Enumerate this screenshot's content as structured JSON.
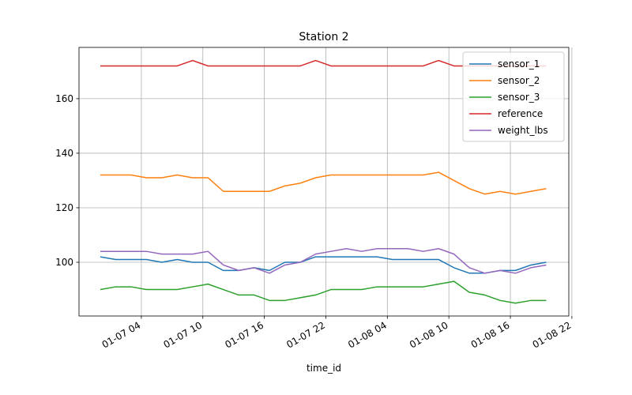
{
  "chart_data": {
    "type": "line",
    "title": "Station 2",
    "x_label": "time_id",
    "x": [
      0,
      1.5,
      3,
      4.5,
      6,
      7.5,
      9,
      10.5,
      12,
      13.5,
      15,
      16.5,
      18,
      19.5,
      21,
      22.5,
      24,
      25.5,
      27,
      28.5,
      30,
      31.5,
      33,
      34.5,
      36,
      37.5,
      39,
      40.5,
      42,
      43.5
    ],
    "series": [
      {
        "name": "sensor_1",
        "color": "#1f77b4",
        "values": [
          102,
          101,
          101,
          101,
          100,
          101,
          100,
          100,
          97,
          97,
          98,
          97,
          100,
          100,
          102,
          102,
          102,
          102,
          102,
          101,
          101,
          101,
          101,
          98,
          96,
          96,
          97,
          97,
          99,
          100
        ]
      },
      {
        "name": "sensor_2",
        "color": "#ff7f0e",
        "values": [
          132,
          132,
          132,
          131,
          131,
          132,
          131,
          131,
          126,
          126,
          126,
          126,
          128,
          129,
          131,
          132,
          132,
          132,
          132,
          132,
          132,
          132,
          133,
          130,
          127,
          125,
          126,
          125,
          126,
          127
        ]
      },
      {
        "name": "sensor_3",
        "color": "#2ca02c",
        "values": [
          90,
          91,
          91,
          90,
          90,
          90,
          91,
          92,
          90,
          88,
          88,
          86,
          86,
          87,
          88,
          90,
          90,
          90,
          91,
          91,
          91,
          91,
          92,
          93,
          89,
          88,
          86,
          85,
          86,
          86
        ]
      },
      {
        "name": "reference",
        "color": "#d62728",
        "values": [
          172,
          172,
          172,
          172,
          172,
          172,
          174,
          172,
          172,
          172,
          172,
          172,
          172,
          172,
          174,
          172,
          172,
          172,
          172,
          172,
          172,
          172,
          174,
          172,
          172,
          172,
          172,
          172,
          172,
          172
        ]
      },
      {
        "name": "weight_lbs",
        "color": "#9467bd",
        "values": [
          104,
          104,
          104,
          104,
          103,
          103,
          103,
          104,
          99,
          97,
          98,
          96,
          99,
          100,
          103,
          104,
          105,
          104,
          105,
          105,
          105,
          104,
          105,
          103,
          98,
          96,
          97,
          96,
          98,
          99
        ]
      }
    ],
    "xlim": [
      -2.08,
      45.7
    ],
    "xticks": [
      {
        "value": 4,
        "label": "01-07 04"
      },
      {
        "value": 10,
        "label": "01-07 10"
      },
      {
        "value": 16,
        "label": "01-07 16"
      },
      {
        "value": 22,
        "label": "01-07 22"
      },
      {
        "value": 28,
        "label": "01-08 04"
      },
      {
        "value": 34,
        "label": "01-08 10"
      },
      {
        "value": 40,
        "label": "01-08 16"
      },
      {
        "value": 46,
        "label": "01-08 22"
      }
    ],
    "ylim": [
      80.3,
      178.8
    ],
    "yticks": [
      100,
      120,
      140,
      160
    ],
    "grid": true,
    "legend": "upper right"
  }
}
